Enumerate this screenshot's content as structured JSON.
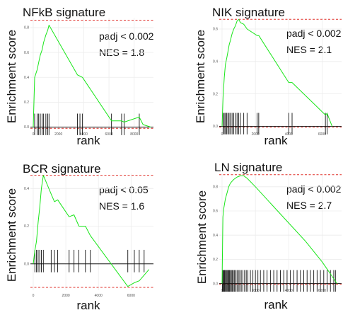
{
  "chart_data": [
    {
      "type": "line",
      "title": "NFkB signature",
      "xlabel": "rank",
      "ylabel": "Enrichment score",
      "stats": [
        "padj < 0.002",
        "NES = 1.8"
      ],
      "xlim": [
        0,
        9300
      ],
      "ylim": [
        -0.02,
        0.88
      ],
      "x_ticks": [
        "0",
        "2000",
        "4000",
        "6000",
        "8000"
      ],
      "x_tick_values": [
        0,
        2000,
        4000,
        6000,
        8000
      ],
      "y_ticks": [
        "0.0",
        "0.2",
        "0.4",
        "0.6",
        "0.8"
      ],
      "y_tick_values": [
        0,
        0.2,
        0.4,
        0.6,
        0.8
      ],
      "dashed_lines": [
        0.86,
        -0.01
      ],
      "hits": [
        110,
        310,
        430,
        560,
        700,
        820,
        1000,
        1150,
        1250,
        3500,
        3700,
        3900,
        6200,
        7000,
        7200,
        8400
      ],
      "curve": {
        "x": [
          0,
          110,
          310,
          430,
          560,
          700,
          820,
          1000,
          1150,
          1250,
          3500,
          3700,
          3900,
          6200,
          7000,
          7200,
          8400,
          8700,
          9300
        ],
        "y": [
          0,
          0.4,
          0.46,
          0.52,
          0.58,
          0.62,
          0.68,
          0.74,
          0.78,
          0.82,
          0.42,
          0.41,
          0.4,
          0.05,
          0.05,
          0.04,
          0.08,
          0.02,
          0
        ]
      }
    },
    {
      "type": "line",
      "title": "NIK signature",
      "xlabel": "rank",
      "ylabel": "Enrichment score",
      "stats": [
        "padj < 0.002",
        "NES = 2.1"
      ],
      "xlim": [
        0,
        7000
      ],
      "ylim": [
        -0.02,
        0.67
      ],
      "x_ticks": [
        "0",
        "2000",
        "4000",
        "6000"
      ],
      "x_tick_values": [
        0,
        2000,
        4000,
        6000
      ],
      "y_ticks": [
        "0.0",
        "0.2",
        "0.4",
        "0.6"
      ],
      "y_tick_values": [
        0,
        0.2,
        0.4,
        0.6
      ],
      "dashed_lines": [
        0.66,
        -0.005
      ],
      "hits": [
        60,
        130,
        200,
        280,
        350,
        420,
        500,
        600,
        700,
        800,
        900,
        1000,
        1100,
        1300,
        1500,
        2100,
        2200,
        4000,
        4200,
        6200,
        6300
      ],
      "curve": {
        "x": [
          0,
          60,
          130,
          200,
          280,
          350,
          420,
          500,
          600,
          700,
          800,
          900,
          1000,
          1100,
          1300,
          1500,
          2100,
          2200,
          4000,
          4200,
          6200,
          6300,
          6600
        ],
        "y": [
          0,
          0.18,
          0.3,
          0.38,
          0.42,
          0.46,
          0.5,
          0.53,
          0.57,
          0.6,
          0.62,
          0.65,
          0.66,
          0.64,
          0.63,
          0.6,
          0.56,
          0.56,
          0.27,
          0.27,
          0.07,
          0.08,
          0
        ]
      }
    },
    {
      "type": "line",
      "title": "BCR signature",
      "xlabel": "rank",
      "ylabel": "Enrichment score",
      "stats": [
        "padj < 0.05",
        "NES = 1.6"
      ],
      "xlim": [
        0,
        7200
      ],
      "ylim": [
        -0.14,
        0.48
      ],
      "x_ticks": [
        "0",
        "2000",
        "4000",
        "6000"
      ],
      "x_tick_values": [
        0,
        2000,
        4000,
        6000
      ],
      "y_ticks": [
        "0.0",
        "0.2",
        "0.4"
      ],
      "y_tick_values": [
        0,
        0.2,
        0.4
      ],
      "dashed_lines": [
        0.47,
        -0.125
      ],
      "hits": [
        100,
        200,
        300,
        400,
        500,
        620,
        1100,
        1300,
        1500,
        2200,
        2500,
        2800,
        3200,
        3500,
        5800,
        6200,
        6500,
        6800
      ],
      "curve": {
        "x": [
          0,
          100,
          200,
          300,
          400,
          500,
          620,
          1100,
          1300,
          1500,
          2200,
          2500,
          2800,
          3200,
          3500,
          5800,
          6200,
          6500,
          6800,
          7100
        ],
        "y": [
          0,
          0.07,
          0.12,
          0.22,
          0.3,
          0.4,
          0.47,
          0.37,
          0.33,
          0.34,
          0.25,
          0.26,
          0.2,
          0.2,
          0.15,
          -0.12,
          -0.1,
          -0.09,
          -0.06,
          -0.03
        ]
      }
    },
    {
      "type": "line",
      "title": "LN signature",
      "xlabel": "rank",
      "ylabel": "Enrichment score",
      "stats": [
        "padj < 0.002",
        "NES = 2.7"
      ],
      "xlim": [
        0,
        7000
      ],
      "ylim": [
        -0.02,
        0.91
      ],
      "x_ticks": [
        "0",
        "2000",
        "4000",
        "6000"
      ],
      "x_tick_values": [
        0,
        2000,
        4000,
        6000
      ],
      "y_ticks": [
        "0.0",
        "0.2",
        "0.4",
        "0.6",
        "0.8"
      ],
      "y_tick_values": [
        0,
        0.2,
        0.4,
        0.6,
        0.8
      ],
      "dashed_lines": [
        0.9,
        -0.005
      ],
      "hits": [
        20,
        60,
        100,
        150,
        200,
        250,
        300,
        350,
        400,
        450,
        500,
        560,
        620,
        680,
        750,
        820,
        900,
        980,
        1060,
        1150,
        1250,
        1350,
        1450,
        1550,
        1700,
        1850,
        2000,
        2150,
        2300,
        2500,
        2700,
        2900,
        3100,
        3300,
        3500,
        3700,
        3900,
        4100,
        4300,
        4500,
        4700,
        4900,
        5100,
        5300,
        5500,
        5700,
        5900,
        6100,
        6300,
        6500,
        6700,
        6800
      ],
      "curve": {
        "x": [
          0,
          50,
          100,
          200,
          300,
          400,
          500,
          700,
          900,
          1100,
          1300,
          1500,
          2000,
          3000,
          4000,
          5000,
          6000,
          6500,
          6900
        ],
        "y": [
          0,
          0.55,
          0.62,
          0.7,
          0.75,
          0.8,
          0.83,
          0.86,
          0.88,
          0.89,
          0.89,
          0.87,
          0.8,
          0.65,
          0.5,
          0.35,
          0.18,
          0.08,
          0
        ]
      }
    }
  ]
}
